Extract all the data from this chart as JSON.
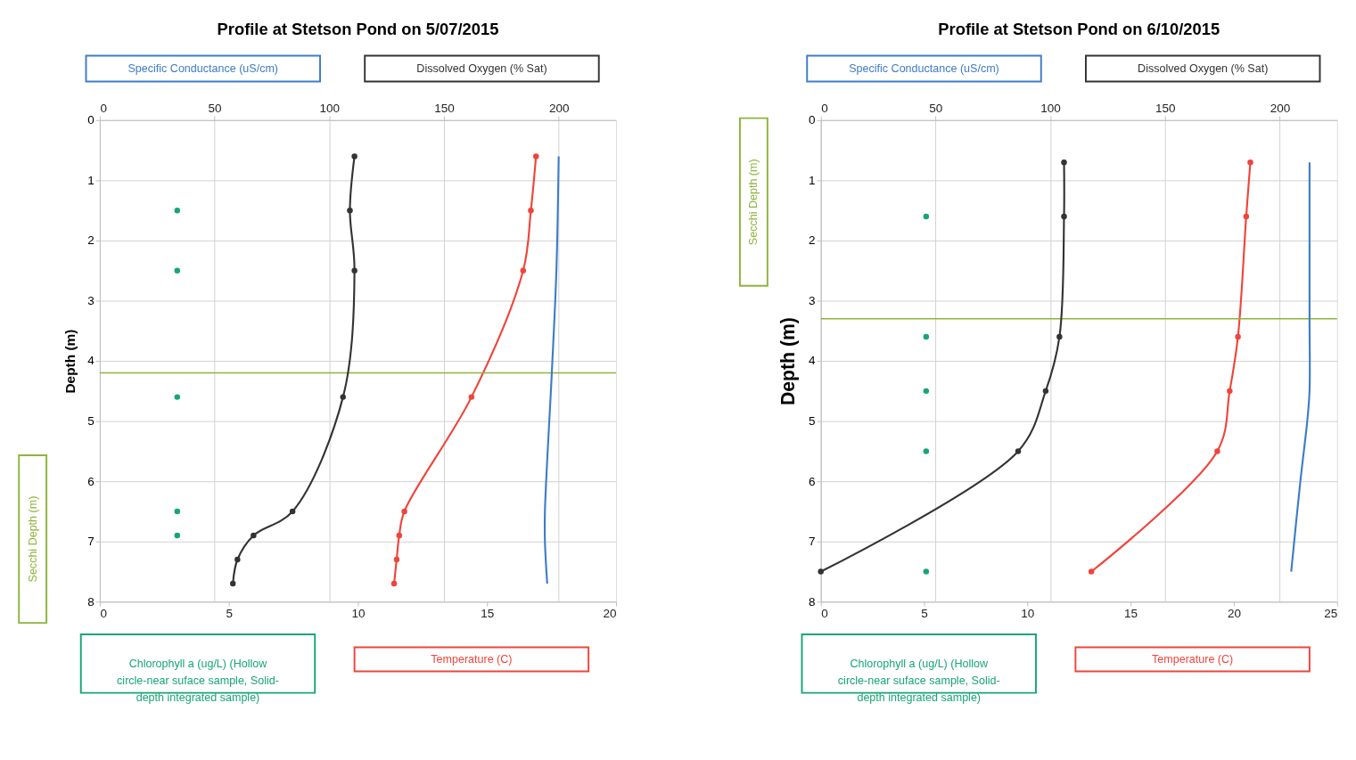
{
  "chart_data": [
    {
      "type": "line",
      "title": "Profile at Stetson Pond on 5/07/2015",
      "ylabel": "Depth (m)",
      "ylim": [
        8,
        0
      ],
      "yticks": [
        0,
        1,
        2,
        3,
        4,
        5,
        6,
        7,
        8
      ],
      "xlim": [
        0,
        20
      ],
      "xticks": [
        0,
        5,
        10,
        15,
        20
      ],
      "x2lim": [
        0,
        225
      ],
      "x2ticks": [
        0,
        50,
        100,
        150,
        200
      ],
      "grid": true,
      "series": [
        {
          "name": "Specific Conductance (uS/cm)",
          "color": "#3d7cc9",
          "axis": "x2",
          "marker": "none",
          "x": [
            200,
            199,
            197,
            194,
            194,
            195
          ],
          "values": [
            0.6,
            2.5,
            4.2,
            6.5,
            7.0,
            7.7
          ]
        },
        {
          "name": "Dissolved Oxygen (% Sat)",
          "color": "#333333",
          "axis": "x2",
          "marker": "circle",
          "x": [
            111,
            109,
            111,
            106,
            84,
            67,
            60,
            58
          ],
          "values": [
            0.6,
            1.5,
            2.5,
            4.6,
            6.5,
            6.9,
            7.3,
            7.7
          ]
        },
        {
          "name": "Chlorophyll a (ug/L) (Hollow circle-near suface sample, Solid-depth integrated sample)",
          "color": "#17a673",
          "type": "scatter",
          "marker": "circle",
          "x": [
            3,
            3,
            3,
            3,
            3
          ],
          "values": [
            1.5,
            2.5,
            4.6,
            6.5,
            6.9
          ]
        },
        {
          "name": "Temperature (C)",
          "color": "#f0443a",
          "marker": "circle",
          "x": [
            16.9,
            16.7,
            16.4,
            14.4,
            11.8,
            11.6,
            11.5,
            11.4
          ],
          "values": [
            0.6,
            1.5,
            2.5,
            4.6,
            6.5,
            6.9,
            7.3,
            7.7
          ]
        }
      ],
      "ref_lines": [
        {
          "axis": "y",
          "value": 4.2,
          "label": "Secchi Depth (m)",
          "color": "#8db53c"
        }
      ]
    },
    {
      "type": "line",
      "title": "Profile at Stetson Pond on 6/10/2015",
      "ylabel": "Depth (m)",
      "ylim": [
        8,
        0
      ],
      "yticks": [
        0,
        1,
        2,
        3,
        4,
        5,
        6,
        7,
        8
      ],
      "xlim": [
        0,
        25
      ],
      "xticks": [
        0,
        5,
        10,
        15,
        20,
        25
      ],
      "x2lim": [
        0,
        225
      ],
      "x2ticks": [
        0,
        50,
        100,
        150,
        200
      ],
      "grid": true,
      "series": [
        {
          "name": "Specific Conductance (uS/cm)",
          "color": "#3d7cc9",
          "axis": "x2",
          "marker": "none",
          "x": [
            213,
            213,
            213,
            212,
            209,
            205
          ],
          "values": [
            0.7,
            3.3,
            4.5,
            5.0,
            6.0,
            7.5
          ]
        },
        {
          "name": "Dissolved Oxygen (% Sat)",
          "color": "#333333",
          "axis": "x2",
          "marker": "circle",
          "x": [
            106,
            106,
            104,
            98,
            86,
            0
          ],
          "values": [
            0.7,
            1.6,
            3.6,
            4.5,
            5.5,
            7.5
          ]
        },
        {
          "name": "Chlorophyll a (ug/L) (Hollow circle-near suface sample, Solid-depth integrated sample)",
          "color": "#17a673",
          "type": "scatter",
          "marker": "circle",
          "x": [
            5.1,
            5.1,
            5.1,
            5.1,
            5.1
          ],
          "values": [
            1.6,
            3.6,
            4.5,
            5.5,
            7.5
          ]
        },
        {
          "name": "Temperature (C)",
          "color": "#f0443a",
          "marker": "circle",
          "x": [
            20.8,
            20.6,
            20.2,
            19.8,
            19.2,
            13.1
          ],
          "values": [
            0.7,
            1.6,
            3.6,
            4.5,
            5.5,
            7.5
          ]
        }
      ],
      "ref_lines": [
        {
          "axis": "y",
          "value": 3.3,
          "label": "Secchi Depth (m)",
          "color": "#8db53c"
        }
      ]
    }
  ]
}
